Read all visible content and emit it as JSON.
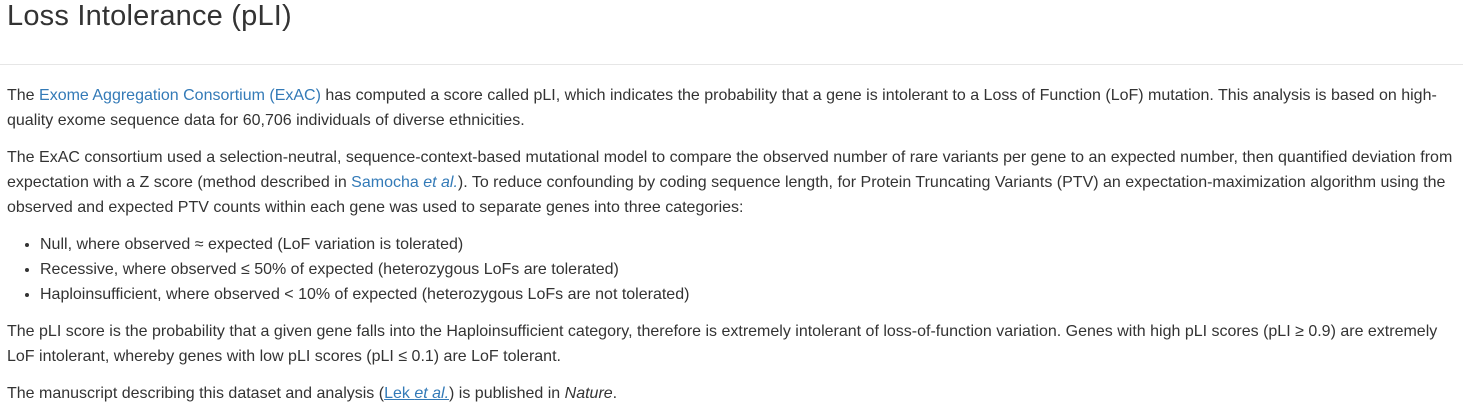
{
  "header": {
    "title": "Loss Intolerance (pLI)"
  },
  "intro": {
    "pre_link": "The ",
    "exac_link": "Exome Aggregation Consortium (ExAC)",
    "post_link": " has computed a score called pLI, which indicates the probability that a gene is intolerant to a Loss of Function (LoF) mutation. This analysis is based on high-quality exome sequence data for 60,706 individuals of diverse ethnicities."
  },
  "method": {
    "pre_link": "The ExAC consortium used a selection-neutral, sequence-context-based mutational model to compare the observed number of rare variants per gene to an expected number, then quantified deviation from expectation with a Z score (method described in ",
    "samocha_link_name": "Samocha ",
    "samocha_link_etal": "et al.",
    "post_link": "). To reduce confounding by coding sequence length, for Protein Truncating Variants (PTV) an expectation-maximization algorithm using the observed and expected PTV counts within each gene was used to separate genes into three categories:"
  },
  "categories": [
    "Null, where observed ≈ expected (LoF variation is tolerated)",
    "Recessive, where observed ≤ 50% of expected (heterozygous LoFs are tolerated)",
    "Haploinsufficient, where observed < 10% of expected (heterozygous LoFs are not tolerated)"
  ],
  "score_text": "The pLI score is the probability that a given gene falls into the Haploinsufficient category, therefore is extremely intolerant of loss-of-function variation. Genes with high pLI scores (pLI ≥ 0.9) are extremely LoF intolerant, whereby genes with low pLI scores (pLI ≤ 0.1) are LoF tolerant.",
  "manuscript": {
    "pre_link": "The manuscript describing this dataset and analysis (",
    "lek_link_name": "Lek ",
    "lek_link_etal": "et al.",
    "mid": ") is published in ",
    "journal": "Nature",
    "end": "."
  },
  "colors": {
    "text": "#333333",
    "link": "#337ab7",
    "divider": "#e6e6e6"
  }
}
